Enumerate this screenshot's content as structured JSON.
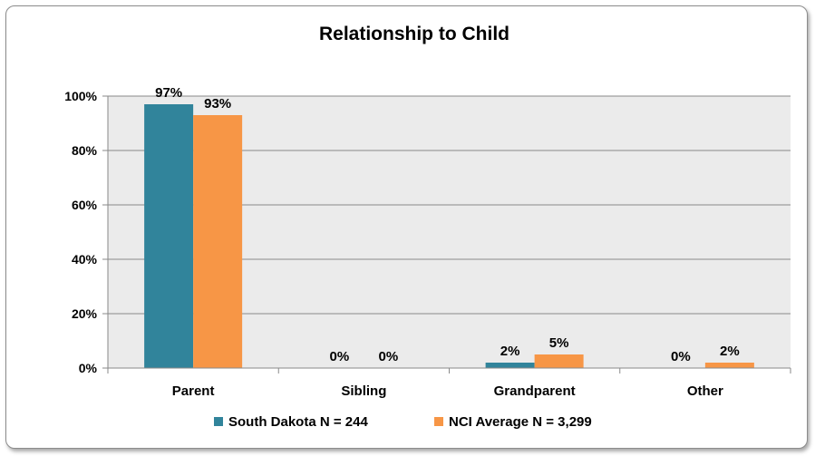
{
  "chart_data": {
    "type": "bar",
    "title": "Relationship to Child",
    "categories": [
      "Parent",
      "Sibling",
      "Grandparent",
      "Other"
    ],
    "series": [
      {
        "name": "South Dakota N = 244",
        "values": [
          97,
          0,
          2,
          0
        ],
        "labels": [
          "97%",
          "0%",
          "2%",
          "0%"
        ],
        "color": "#31849B"
      },
      {
        "name": "NCI Average N = 3,299",
        "values": [
          93,
          0,
          5,
          2
        ],
        "labels": [
          "93%",
          "0%",
          "5%",
          "2%"
        ],
        "color": "#F79646"
      }
    ],
    "yticks": [
      "0%",
      "20%",
      "40%",
      "60%",
      "80%",
      "100%"
    ],
    "ylim": [
      0,
      100
    ],
    "grid": true,
    "legend_position": "bottom",
    "plot_background": "#EBEBEB"
  }
}
